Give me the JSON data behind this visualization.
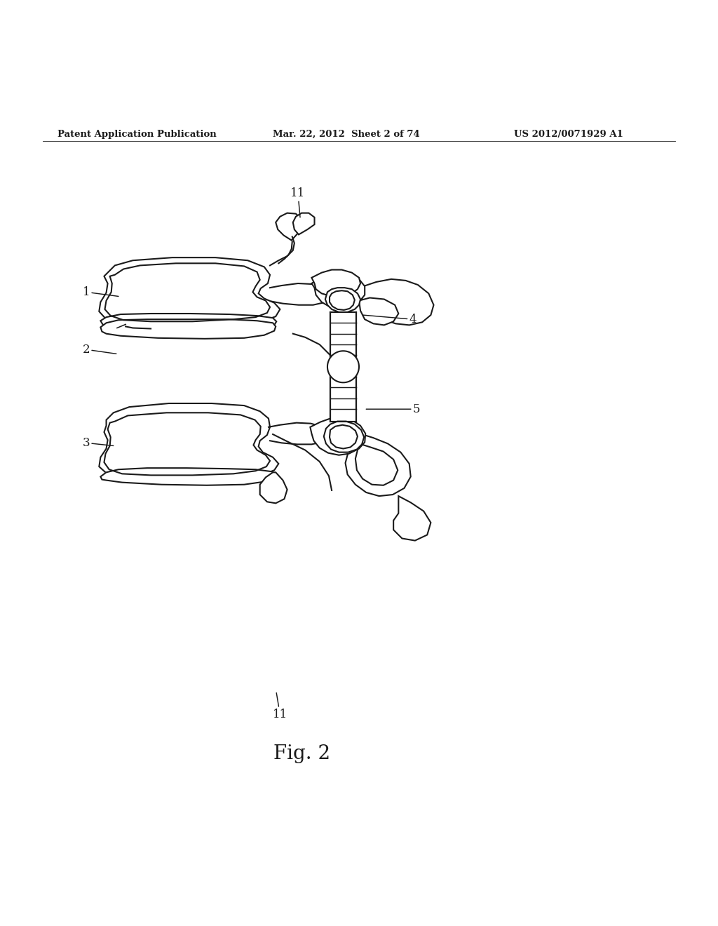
{
  "bg_color": "#ffffff",
  "line_color": "#1a1a1a",
  "line_width": 1.5,
  "fig_width": 10.24,
  "fig_height": 13.2,
  "header_left": "Patent Application Publication",
  "header_mid": "Mar. 22, 2012  Sheet 2 of 74",
  "header_right": "US 2012/0071929 A1",
  "caption": "Fig. 2",
  "header_fontsize": 9.5,
  "caption_fontsize": 20,
  "label_fontsize": 12
}
